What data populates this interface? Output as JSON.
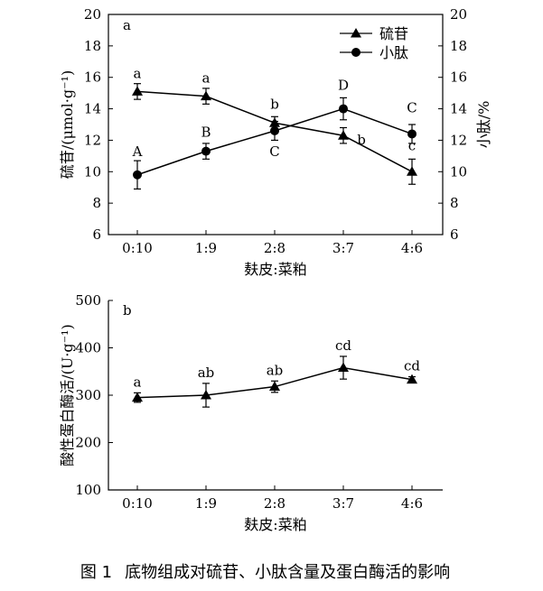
{
  "caption": {
    "label": "图 1",
    "text": "底物组成对硫苷、小肽含量及蛋白酶活的影响"
  },
  "chart_data": [
    {
      "panel_label": "a",
      "type": "line",
      "xlabel": "麸皮:菜粕",
      "categories": [
        "0:10",
        "1:9",
        "2:8",
        "3:7",
        "4:6"
      ],
      "ylabel_left": "硫苷/(μmol·g⁻¹)",
      "ylabel_right": "小肽/%",
      "ylim_left": [
        6,
        20
      ],
      "ylim_right": [
        6,
        20
      ],
      "yticks": [
        6,
        8,
        10,
        12,
        14,
        16,
        18,
        20
      ],
      "legend_position": "top-right",
      "series": [
        {
          "name": "硫苷",
          "marker": "triangle",
          "axis": "left",
          "values": [
            15.1,
            14.8,
            13.1,
            12.3,
            10.0
          ],
          "errors": [
            0.5,
            0.5,
            0.4,
            0.5,
            0.8
          ],
          "labels": [
            "a",
            "a",
            "b",
            "b",
            "c"
          ]
        },
        {
          "name": "小肽",
          "marker": "circle",
          "axis": "right",
          "values": [
            9.8,
            11.3,
            12.6,
            14.0,
            12.4
          ],
          "errors": [
            0.9,
            0.5,
            0.6,
            0.7,
            0.6
          ],
          "labels": [
            "A",
            "B",
            "C",
            "D",
            "C"
          ]
        }
      ]
    },
    {
      "panel_label": "b",
      "type": "line",
      "xlabel": "麸皮:菜粕",
      "categories": [
        "0:10",
        "1:9",
        "2:8",
        "3:7",
        "4:6"
      ],
      "ylabel": "酸性蛋白酶活/(U·g⁻¹)",
      "ylim": [
        100,
        500
      ],
      "yticks": [
        100,
        200,
        300,
        400,
        500
      ],
      "series": [
        {
          "name": "酸性蛋白酶活",
          "marker": "triangle",
          "values": [
            295,
            300,
            318,
            358,
            333
          ],
          "errors": [
            10,
            25,
            12,
            24,
            6
          ],
          "labels": [
            "a",
            "ab",
            "ab",
            "cd",
            "cd"
          ]
        }
      ]
    }
  ]
}
